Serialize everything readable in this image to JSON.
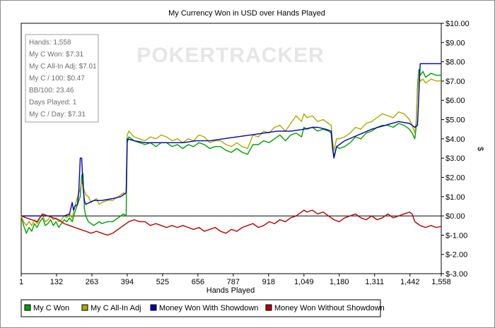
{
  "chart_data": {
    "type": "line",
    "title": "My Currency Won in USD over Hands Played",
    "xlabel": "Hands Played",
    "ylabel": "$",
    "xlim": [
      1,
      1558
    ],
    "ylim": [
      -3,
      10
    ],
    "x_ticks": [
      1,
      132,
      263,
      394,
      525,
      656,
      787,
      918,
      1049,
      1180,
      1311,
      1442,
      1558
    ],
    "x_tick_labels": [
      "1",
      "132",
      "263",
      "394",
      "525",
      "656",
      "787",
      "918",
      "1,049",
      "1,180",
      "1,311",
      "1,442",
      "1,558"
    ],
    "y_ticks": [
      -3,
      -2,
      -1,
      0,
      1,
      2,
      3,
      4,
      5,
      6,
      7,
      8,
      9,
      10
    ],
    "y_tick_labels": [
      "$-3.00",
      "$-2.00",
      "$-1.00",
      "$0.00",
      "$1.00",
      "$2.00",
      "$3.00",
      "$4.00",
      "$5.00",
      "$6.00",
      "$7.00",
      "$8.00",
      "$9.00",
      "$10.00"
    ],
    "grid": false,
    "legend_position": "bottom",
    "watermark": "POKERTRACKER",
    "stats_box": [
      "Hands: 1,558",
      "My C Won: $7.31",
      "My C All-In Adj: $7.01",
      "My C / 100: $0.47",
      "BB/100: 23.46",
      "Days Played: 1",
      "My C / Day: $7.31"
    ],
    "series": [
      {
        "name": "My C Won",
        "color": "#00a000",
        "x": [
          1,
          10,
          20,
          30,
          40,
          50,
          60,
          70,
          80,
          90,
          100,
          110,
          120,
          130,
          140,
          150,
          160,
          170,
          180,
          190,
          200,
          210,
          220,
          225,
          230,
          235,
          240,
          250,
          260,
          270,
          280,
          290,
          300,
          320,
          340,
          360,
          380,
          390,
          394,
          400,
          420,
          440,
          460,
          480,
          500,
          520,
          540,
          560,
          580,
          600,
          620,
          640,
          660,
          680,
          700,
          720,
          740,
          760,
          780,
          800,
          820,
          840,
          860,
          880,
          900,
          920,
          940,
          960,
          980,
          1000,
          1020,
          1040,
          1049,
          1060,
          1080,
          1100,
          1120,
          1140,
          1150,
          1155,
          1160,
          1170,
          1180,
          1200,
          1220,
          1240,
          1260,
          1280,
          1300,
          1320,
          1340,
          1360,
          1380,
          1400,
          1420,
          1440,
          1450,
          1460,
          1465,
          1470,
          1475,
          1480,
          1490,
          1500,
          1520,
          1540,
          1558
        ],
        "y": [
          0,
          -0.5,
          -0.9,
          -0.6,
          -0.8,
          -0.4,
          -0.6,
          -0.3,
          -0.1,
          -0.5,
          -0.4,
          -0.2,
          -0.5,
          -0.3,
          -0.6,
          -0.4,
          -0.2,
          -0.3,
          -0.1,
          -0.3,
          0.2,
          0.6,
          1.0,
          2.1,
          2.2,
          0.4,
          0.0,
          -0.3,
          -0.4,
          -0.5,
          -0.4,
          -0.3,
          -0.4,
          -0.3,
          -0.3,
          -0.1,
          0.1,
          0.0,
          3.8,
          4.1,
          3.9,
          3.8,
          3.7,
          3.8,
          3.6,
          3.8,
          3.8,
          3.6,
          3.7,
          3.5,
          3.7,
          3.6,
          3.8,
          3.7,
          3.5,
          3.6,
          3.6,
          3.4,
          3.3,
          3.5,
          3.3,
          3.2,
          3.7,
          3.7,
          3.9,
          3.8,
          4.0,
          4.2,
          3.9,
          4.2,
          4.3,
          4.1,
          4.6,
          4.5,
          4.6,
          4.4,
          4.5,
          4.4,
          4.3,
          3.5,
          3.1,
          3.6,
          3.5,
          3.6,
          3.8,
          4.1,
          4.0,
          4.3,
          4.4,
          4.6,
          4.7,
          4.7,
          4.6,
          4.8,
          4.7,
          4.5,
          4.3,
          4.0,
          4.6,
          6.7,
          7.6,
          7.3,
          7.5,
          7.2,
          7.4,
          7.3,
          7.31
        ]
      },
      {
        "name": "My C All-In Adj",
        "color": "#aaaa00",
        "x": [
          1,
          10,
          20,
          30,
          40,
          50,
          60,
          70,
          80,
          90,
          100,
          110,
          120,
          130,
          140,
          150,
          160,
          170,
          180,
          190,
          200,
          210,
          220,
          225,
          230,
          235,
          240,
          250,
          260,
          270,
          280,
          290,
          300,
          320,
          340,
          360,
          380,
          390,
          394,
          400,
          420,
          440,
          460,
          480,
          500,
          520,
          540,
          560,
          580,
          600,
          620,
          640,
          660,
          680,
          700,
          720,
          740,
          760,
          780,
          800,
          820,
          840,
          860,
          880,
          900,
          920,
          940,
          960,
          980,
          1000,
          1020,
          1040,
          1049,
          1060,
          1080,
          1100,
          1120,
          1140,
          1150,
          1155,
          1160,
          1170,
          1180,
          1200,
          1220,
          1240,
          1260,
          1280,
          1300,
          1320,
          1340,
          1360,
          1380,
          1400,
          1420,
          1440,
          1450,
          1460,
          1465,
          1470,
          1475,
          1480,
          1490,
          1500,
          1520,
          1540,
          1558
        ],
        "y": [
          0,
          -0.3,
          -0.5,
          -0.3,
          -0.5,
          -0.2,
          -0.4,
          -0.1,
          0.1,
          -0.3,
          -0.2,
          0.0,
          -0.2,
          -0.1,
          -0.3,
          -0.2,
          0.0,
          -0.1,
          0.1,
          -0.1,
          0.5,
          1.0,
          1.4,
          1.8,
          1.6,
          1.3,
          1.1,
          1.0,
          0.7,
          0.8,
          0.9,
          0.6,
          0.7,
          0.8,
          0.8,
          1.0,
          1.2,
          1.1,
          4.2,
          4.4,
          4.1,
          4.0,
          3.9,
          4.1,
          4.0,
          4.2,
          4.1,
          3.9,
          4.0,
          3.8,
          4.0,
          3.9,
          4.2,
          4.1,
          3.8,
          3.9,
          3.9,
          3.7,
          3.6,
          3.8,
          3.6,
          3.5,
          4.2,
          4.1,
          4.4,
          4.3,
          4.6,
          4.7,
          4.4,
          4.8,
          5.2,
          4.9,
          5.3,
          5.1,
          5.2,
          4.9,
          5.0,
          4.8,
          4.7,
          3.9,
          3.4,
          4.0,
          4.0,
          4.1,
          4.3,
          4.6,
          4.5,
          4.8,
          4.9,
          5.1,
          5.3,
          5.2,
          5.1,
          5.4,
          5.3,
          5.0,
          4.7,
          4.3,
          4.9,
          6.4,
          7.3,
          7.0,
          7.1,
          6.9,
          7.1,
          7.0,
          7.01
        ]
      },
      {
        "name": "Money Won With Showdown",
        "color": "#0000b4",
        "x": [
          1,
          50,
          130,
          160,
          180,
          190,
          195,
          200,
          210,
          215,
          220,
          225,
          230,
          235,
          240,
          270,
          300,
          340,
          370,
          380,
          390,
          394,
          420,
          460,
          520,
          600,
          650,
          700,
          750,
          800,
          850,
          900,
          950,
          1000,
          1049,
          1080,
          1100,
          1130,
          1150,
          1155,
          1160,
          1170,
          1200,
          1250,
          1300,
          1350,
          1400,
          1440,
          1450,
          1460,
          1470,
          1480,
          1500,
          1530,
          1558
        ],
        "y": [
          0,
          0,
          0,
          0,
          0.1,
          0.7,
          0.3,
          0.5,
          0.6,
          1.4,
          3.0,
          3.0,
          1.5,
          0.8,
          0.6,
          0.8,
          0.8,
          0.9,
          1.0,
          1.1,
          1.2,
          4.0,
          3.9,
          3.8,
          3.8,
          3.8,
          3.9,
          3.9,
          4.0,
          4.1,
          4.2,
          4.3,
          4.4,
          4.4,
          4.5,
          4.6,
          4.6,
          4.5,
          4.4,
          3.5,
          3.0,
          3.6,
          3.9,
          4.2,
          4.5,
          4.7,
          4.9,
          4.8,
          4.7,
          4.6,
          4.7,
          7.9,
          7.9,
          7.9,
          7.9
        ]
      },
      {
        "name": "Money Won Without Showdown",
        "color": "#b40000",
        "x": [
          1,
          20,
          40,
          60,
          80,
          100,
          120,
          140,
          160,
          180,
          200,
          220,
          240,
          260,
          280,
          300,
          320,
          340,
          360,
          380,
          400,
          420,
          440,
          460,
          480,
          500,
          520,
          540,
          560,
          580,
          600,
          620,
          640,
          660,
          680,
          700,
          720,
          740,
          760,
          780,
          800,
          820,
          840,
          860,
          880,
          900,
          920,
          940,
          960,
          980,
          1000,
          1020,
          1040,
          1049,
          1060,
          1080,
          1100,
          1120,
          1140,
          1160,
          1180,
          1200,
          1220,
          1240,
          1260,
          1280,
          1300,
          1320,
          1340,
          1360,
          1380,
          1400,
          1420,
          1440,
          1450,
          1460,
          1470,
          1480,
          1500,
          1520,
          1540,
          1558
        ],
        "y": [
          0,
          -0.1,
          -0.2,
          -0.3,
          0.1,
          0.0,
          -0.1,
          -0.2,
          -0.4,
          -0.5,
          -0.6,
          -0.7,
          -0.8,
          -0.9,
          -0.8,
          -0.9,
          -1.0,
          -0.9,
          -0.7,
          -0.5,
          -0.3,
          -0.2,
          -0.3,
          -0.3,
          -0.5,
          -0.4,
          -0.5,
          -0.6,
          -0.5,
          -0.6,
          -0.5,
          -0.6,
          -0.7,
          -0.6,
          -0.8,
          -0.7,
          -0.6,
          -0.8,
          -0.9,
          -0.7,
          -0.8,
          -0.6,
          -0.5,
          -0.4,
          -0.6,
          -0.5,
          -0.3,
          -0.4,
          -0.2,
          -0.3,
          -0.1,
          0.0,
          0.2,
          0.3,
          0.2,
          0.3,
          0.1,
          0.2,
          0.0,
          -0.2,
          -0.3,
          -0.1,
          0.0,
          0.1,
          -0.1,
          -0.2,
          0.0,
          -0.2,
          -0.1,
          0.1,
          -0.1,
          0.0,
          0.1,
          0.2,
          0.1,
          -0.3,
          -0.4,
          -0.5,
          -0.6,
          -0.5,
          -0.6,
          -0.55
        ]
      }
    ]
  }
}
